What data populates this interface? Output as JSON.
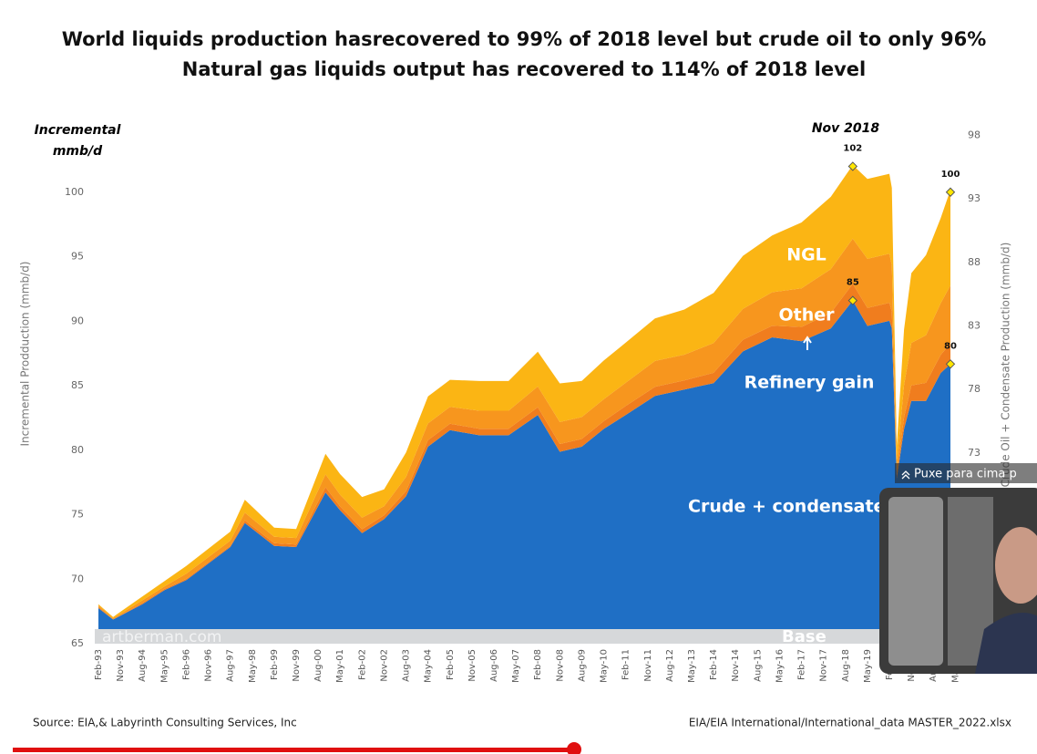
{
  "chart_data": {
    "type": "stacked-area",
    "title": "World liquids production hasrecovered to 99% of 2018 level but crude oil to only 96%",
    "subtitle": "Natural gas liquids output has recovered to 114% of 2018 level",
    "y_unit_label": [
      "Incremental",
      "mmb/d"
    ],
    "ylabel": "Incremental Prodduction (mmb/d)",
    "y2label": "Crude Oil + Condensate Production (mmb/d)",
    "annotation": "Nov 2018",
    "base_label": "Base",
    "watermark": "artberman.com",
    "source": "Source: EIA,& Labyrinth Consulting Services, Inc",
    "file_note": "EIA/EIA International/International_data MASTER_2022.xlsx",
    "xlim": [
      "Feb-93",
      "Mar-22"
    ],
    "xticks": [
      "Feb-93",
      "Nov-93",
      "Aug-94",
      "May-95",
      "Feb-96",
      "Nov-96",
      "Aug-97",
      "May-98",
      "Feb-99",
      "Nov-99",
      "Aug-00",
      "May-01",
      "Feb-02",
      "Nov-02",
      "Aug-03",
      "May-04",
      "Feb-05",
      "Nov-05",
      "Aug-06",
      "May-07",
      "Feb-08",
      "Nov-08",
      "Aug-09",
      "May-10",
      "Feb-11",
      "Nov-11",
      "Aug-12",
      "May-13",
      "Feb-14",
      "Nov-14",
      "Aug-15",
      "May-16",
      "Feb-17",
      "Nov-17",
      "Aug-18",
      "May-19",
      "Feb-20",
      "Nov-20",
      "Aug-21",
      "May-22"
    ],
    "ylim": [
      65,
      105
    ],
    "yticks": [
      65,
      70,
      75,
      80,
      85,
      90,
      95,
      100
    ],
    "y2lim": [
      58,
      98.6
    ],
    "y2ticks": [
      73,
      78,
      83,
      88,
      93,
      98
    ],
    "x": [
      "Feb-93",
      "Aug-93",
      "Aug-94",
      "May-95",
      "Feb-96",
      "Aug-97",
      "Feb-98",
      "Feb-99",
      "Nov-99",
      "Nov-00",
      "May-01",
      "Feb-02",
      "Nov-02",
      "Aug-03",
      "May-04",
      "Feb-05",
      "Feb-06",
      "Feb-07",
      "Feb-08",
      "Nov-08",
      "Aug-09",
      "May-10",
      "Feb-11",
      "Feb-12",
      "Feb-13",
      "Feb-14",
      "Feb-15",
      "Feb-16",
      "Feb-17",
      "Feb-18",
      "Nov-18",
      "May-19",
      "Feb-20",
      "Mar-20",
      "May-20",
      "Aug-20",
      "Nov-20",
      "May-21",
      "Nov-21",
      "Mar-22"
    ],
    "series": [
      {
        "name": "Crude + condensate",
        "color": "#1f6fc5",
        "axis": "y2",
        "values": [
          60.8,
          59.9,
          61.1,
          62.2,
          63.0,
          65.6,
          67.5,
          65.7,
          65.6,
          69.9,
          68.5,
          66.7,
          67.8,
          69.6,
          73.5,
          74.8,
          74.4,
          74.4,
          76.0,
          73.1,
          73.5,
          74.9,
          76.0,
          77.5,
          78.0,
          78.5,
          81.0,
          82.1,
          81.8,
          82.8,
          85.0,
          83.0,
          83.4,
          82.8,
          71.0,
          74.9,
          77.1,
          77.1,
          79.3,
          80.0
        ]
      },
      {
        "name": "Refinery gain",
        "color": "#f07d1e",
        "values": [
          0.1,
          0.0,
          0.1,
          0.1,
          0.1,
          0.1,
          0.2,
          0.2,
          0.2,
          0.4,
          0.3,
          0.3,
          0.3,
          0.4,
          0.5,
          0.5,
          0.5,
          0.5,
          0.6,
          0.6,
          0.6,
          0.6,
          0.7,
          0.7,
          0.7,
          0.8,
          0.9,
          0.9,
          1.1,
          1.2,
          1.3,
          1.4,
          1.4,
          1.3,
          0.3,
          0.9,
          1.2,
          1.4,
          1.4,
          1.6
        ]
      },
      {
        "name": "Other",
        "color": "#f7961e",
        "values": [
          0.1,
          0.1,
          0.2,
          0.2,
          0.4,
          0.4,
          0.6,
          0.5,
          0.5,
          1.0,
          0.9,
          0.9,
          0.7,
          1.1,
          1.3,
          1.3,
          1.4,
          1.4,
          1.6,
          1.7,
          1.7,
          1.7,
          1.8,
          2.0,
          2.0,
          2.3,
          2.4,
          2.6,
          3.0,
          3.4,
          3.5,
          3.8,
          3.8,
          3.6,
          0.8,
          2.5,
          3.3,
          3.7,
          4.0,
          4.5
        ]
      },
      {
        "name": "NGL",
        "color": "#fbb514",
        "values": [
          0.1,
          0.1,
          0.3,
          0.4,
          0.6,
          0.7,
          1.0,
          0.7,
          0.7,
          1.6,
          1.6,
          1.6,
          1.3,
          1.9,
          2.1,
          2.1,
          2.3,
          2.3,
          2.7,
          3.0,
          2.8,
          3.0,
          3.1,
          3.3,
          3.5,
          3.9,
          4.1,
          4.4,
          5.1,
          5.6,
          5.7,
          6.2,
          6.2,
          6.0,
          1.4,
          4.3,
          5.4,
          6.2,
          6.6,
          7.4
        ]
      }
    ],
    "highlights": [
      {
        "x": "Nov-18",
        "value": 102
      },
      {
        "x": "Mar-22",
        "value": 100
      },
      {
        "x": "Nov-18",
        "value": 85,
        "axis": "y2"
      },
      {
        "x": "Mar-22",
        "value": 80,
        "axis": "y2"
      }
    ]
  },
  "player": {
    "hint": "Puxe para cima p"
  }
}
